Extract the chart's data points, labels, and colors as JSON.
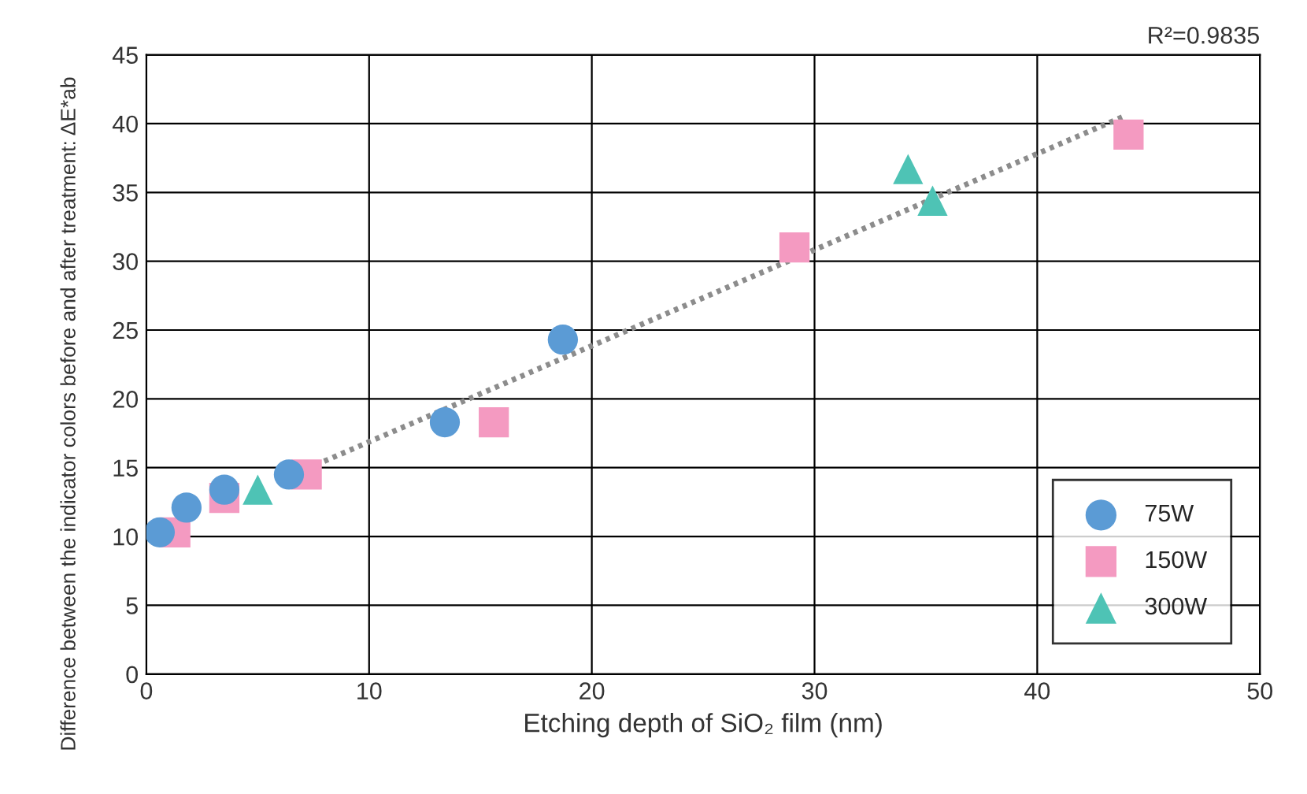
{
  "chart_data": {
    "type": "scatter",
    "xlabel": "Etching depth of SiO₂ film (nm)",
    "ylabel": "Difference between the indicator colors before and after treatment: ΔE*ab",
    "annotations": [
      "R²=0.9835"
    ],
    "xlim": [
      0,
      50
    ],
    "ylim": [
      0,
      45
    ],
    "xticks": [
      0,
      10,
      20,
      30,
      40,
      50
    ],
    "yticks": [
      0,
      5,
      10,
      15,
      20,
      25,
      30,
      35,
      40,
      45
    ],
    "grid": true,
    "legend": "bottom right",
    "series": [
      {
        "name": "75W",
        "color": "#5b9bd5",
        "marker": "circle",
        "x": [
          0.6,
          1.8,
          3.5,
          6.4,
          13.4,
          18.7
        ],
        "values": [
          10.3,
          12.1,
          13.4,
          14.5,
          18.3,
          24.3
        ]
      },
      {
        "name": "150W",
        "color": "#f49ac1",
        "marker": "square",
        "x": [
          1.3,
          3.5,
          7.2,
          15.6,
          29.1,
          44.1
        ],
        "values": [
          10.3,
          12.8,
          14.5,
          18.3,
          31.0,
          39.2
        ]
      },
      {
        "name": "300W",
        "color": "#4ec3b5",
        "marker": "triangle",
        "x": [
          5.0,
          34.2,
          35.3
        ],
        "values": [
          13.4,
          36.7,
          34.4
        ]
      },
      {
        "type": "line",
        "color": "#8c8c8c",
        "line_style": "dotted",
        "marker": "none",
        "x": [
          7.6,
          44
        ],
        "values": [
          15.2,
          40.6
        ]
      }
    ]
  }
}
